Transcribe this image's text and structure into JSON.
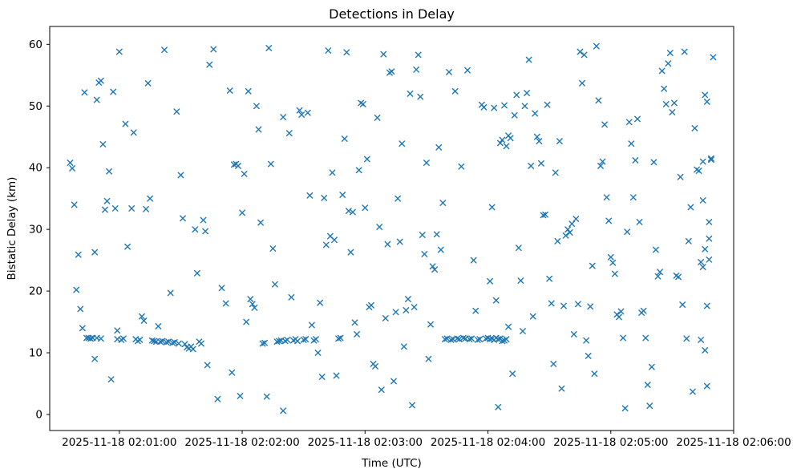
{
  "chart_data": {
    "type": "scatter",
    "title": "Detections in Delay",
    "xlabel": "Time (UTC)",
    "ylabel": "Bistatic Delay (km)",
    "marker": "x",
    "marker_color": "#1f77b4",
    "x_unit": "seconds after 2025-11-18 02:00:00 UTC",
    "xlim_seconds": [
      26,
      360
    ],
    "ylim": [
      -2.6,
      62.9
    ],
    "x_tick_seconds": [
      60,
      120,
      180,
      240,
      300,
      360
    ],
    "x_tick_labels": [
      "2025-11-18 02:01:00",
      "2025-11-18 02:02:00",
      "2025-11-18 02:03:00",
      "2025-11-18 02:04:00",
      "2025-11-18 02:05:00",
      "2025-11-18 02:06:00"
    ],
    "y_ticks": [
      0,
      10,
      20,
      30,
      40,
      50,
      60
    ],
    "grid": false,
    "legend": "none",
    "points": [
      [
        36,
        40.8
      ],
      [
        37,
        39.9
      ],
      [
        38,
        34
      ],
      [
        39,
        20.2
      ],
      [
        40,
        25.9
      ],
      [
        41,
        17.1
      ],
      [
        42,
        14
      ],
      [
        43,
        52.2
      ],
      [
        44,
        12.4
      ],
      [
        45,
        12.4
      ],
      [
        46,
        12.3
      ],
      [
        47,
        12.4
      ],
      [
        48,
        9
      ],
      [
        48,
        26.3
      ],
      [
        49,
        12.4
      ],
      [
        49,
        51
      ],
      [
        50,
        53.8
      ],
      [
        51,
        54.1
      ],
      [
        51,
        12.3
      ],
      [
        52,
        43.8
      ],
      [
        53,
        33.2
      ],
      [
        54,
        34.6
      ],
      [
        55,
        39.4
      ],
      [
        56,
        5.7
      ],
      [
        57,
        52.3
      ],
      [
        58,
        33.4
      ],
      [
        59,
        12.2
      ],
      [
        59,
        13.6
      ],
      [
        60,
        58.8
      ],
      [
        61,
        12.1
      ],
      [
        62,
        12.3
      ],
      [
        63,
        47.1
      ],
      [
        64,
        27.2
      ],
      [
        66,
        33.4
      ],
      [
        67,
        45.7
      ],
      [
        68,
        12.2
      ],
      [
        69,
        11.9
      ],
      [
        70,
        12.1
      ],
      [
        71,
        15.9
      ],
      [
        72,
        15.2
      ],
      [
        73,
        33.3
      ],
      [
        74,
        53.7
      ],
      [
        75,
        35
      ],
      [
        76,
        12
      ],
      [
        77,
        11.9
      ],
      [
        78,
        11.8
      ],
      [
        79,
        14.3
      ],
      [
        80,
        11.8
      ],
      [
        81,
        11.9
      ],
      [
        82,
        59.1
      ],
      [
        83,
        11.7
      ],
      [
        84,
        11.8
      ],
      [
        85,
        19.7
      ],
      [
        86,
        11.6
      ],
      [
        87,
        11.7
      ],
      [
        88,
        49.1
      ],
      [
        89,
        11.5
      ],
      [
        90,
        38.8
      ],
      [
        91,
        31.8
      ],
      [
        92,
        11.4
      ],
      [
        93,
        10.9
      ],
      [
        94,
        10.7
      ],
      [
        95,
        11
      ],
      [
        96,
        10.6
      ],
      [
        97,
        30
      ],
      [
        98,
        22.9
      ],
      [
        99,
        11.8
      ],
      [
        100,
        11.5
      ],
      [
        101,
        31.5
      ],
      [
        102,
        29.7
      ],
      [
        103,
        8
      ],
      [
        104,
        56.7
      ],
      [
        106,
        59.2
      ],
      [
        108,
        2.5
      ],
      [
        110,
        20.5
      ],
      [
        112,
        18
      ],
      [
        114,
        52.5
      ],
      [
        115,
        6.8
      ],
      [
        116,
        40.5
      ],
      [
        117,
        40.6
      ],
      [
        118,
        40.3
      ],
      [
        119,
        3
      ],
      [
        120,
        32.7
      ],
      [
        121,
        39
      ],
      [
        122,
        15
      ],
      [
        123,
        52.4
      ],
      [
        124,
        18.7
      ],
      [
        125,
        17.9
      ],
      [
        126,
        17.3
      ],
      [
        127,
        50
      ],
      [
        128,
        46.2
      ],
      [
        129,
        31.1
      ],
      [
        130,
        11.5
      ],
      [
        131,
        11.6
      ],
      [
        132,
        2.9
      ],
      [
        133,
        59.4
      ],
      [
        134,
        40.6
      ],
      [
        135,
        26.9
      ],
      [
        136,
        21.1
      ],
      [
        137,
        11.8
      ],
      [
        138,
        11.9
      ],
      [
        139,
        12
      ],
      [
        140,
        0.6
      ],
      [
        140,
        48.2
      ],
      [
        141,
        11.9
      ],
      [
        142,
        12.1
      ],
      [
        143,
        45.6
      ],
      [
        144,
        19
      ],
      [
        145,
        12
      ],
      [
        146,
        12.2
      ],
      [
        147,
        11.9
      ],
      [
        148,
        49.3
      ],
      [
        149,
        48.6
      ],
      [
        150,
        12.1
      ],
      [
        151,
        12.2
      ],
      [
        152,
        48.9
      ],
      [
        153,
        35.5
      ],
      [
        154,
        14.5
      ],
      [
        155,
        12
      ],
      [
        156,
        12.2
      ],
      [
        157,
        10
      ],
      [
        158,
        18.1
      ],
      [
        159,
        6.1
      ],
      [
        160,
        35.1
      ],
      [
        161,
        27.5
      ],
      [
        162,
        59
      ],
      [
        163,
        28.9
      ],
      [
        164,
        39.2
      ],
      [
        165,
        28.3
      ],
      [
        166,
        6.3
      ],
      [
        167,
        12.3
      ],
      [
        168,
        12.4
      ],
      [
        169,
        35.6
      ],
      [
        170,
        44.7
      ],
      [
        171,
        58.7
      ],
      [
        172,
        33
      ],
      [
        173,
        26.3
      ],
      [
        174,
        32.8
      ],
      [
        175,
        14.9
      ],
      [
        176,
        13
      ],
      [
        177,
        39.6
      ],
      [
        178,
        50.5
      ],
      [
        179,
        50.3
      ],
      [
        180,
        33.5
      ],
      [
        181,
        41.4
      ],
      [
        182,
        17.4
      ],
      [
        183,
        17.7
      ],
      [
        184,
        8.2
      ],
      [
        185,
        7.8
      ],
      [
        186,
        48.1
      ],
      [
        187,
        30.4
      ],
      [
        188,
        4
      ],
      [
        189,
        58.4
      ],
      [
        190,
        15.6
      ],
      [
        191,
        27.6
      ],
      [
        192,
        55.4
      ],
      [
        193,
        55.6
      ],
      [
        194,
        5.4
      ],
      [
        195,
        16.6
      ],
      [
        196,
        35
      ],
      [
        197,
        28
      ],
      [
        198,
        43.9
      ],
      [
        199,
        11
      ],
      [
        200,
        16.9
      ],
      [
        201,
        18.7
      ],
      [
        202,
        52
      ],
      [
        203,
        1.5
      ],
      [
        204,
        17.4
      ],
      [
        205,
        55.9
      ],
      [
        206,
        58.3
      ],
      [
        207,
        51.5
      ],
      [
        208,
        29.1
      ],
      [
        209,
        26
      ],
      [
        210,
        40.8
      ],
      [
        211,
        9
      ],
      [
        212,
        14.6
      ],
      [
        213,
        24
      ],
      [
        214,
        23.5
      ],
      [
        215,
        29.2
      ],
      [
        216,
        43.3
      ],
      [
        217,
        26.7
      ],
      [
        218,
        34.3
      ],
      [
        219,
        12.2
      ],
      [
        220,
        12.3
      ],
      [
        221,
        55.5
      ],
      [
        222,
        12.1
      ],
      [
        223,
        12.2
      ],
      [
        224,
        52.4
      ],
      [
        225,
        12.3
      ],
      [
        226,
        12.2
      ],
      [
        227,
        40.2
      ],
      [
        228,
        12.4
      ],
      [
        229,
        12.3
      ],
      [
        230,
        55.8
      ],
      [
        231,
        12.2
      ],
      [
        232,
        12.3
      ],
      [
        233,
        25
      ],
      [
        234,
        16.8
      ],
      [
        235,
        12.1
      ],
      [
        236,
        12.2
      ],
      [
        237,
        50.2
      ],
      [
        238,
        49.8
      ],
      [
        239,
        12.3
      ],
      [
        240,
        12.4
      ],
      [
        241,
        12.2
      ],
      [
        242,
        12.3
      ],
      [
        243,
        12.1
      ],
      [
        244,
        12.4
      ],
      [
        245,
        12.2
      ],
      [
        246,
        12.3
      ],
      [
        247,
        11.9
      ],
      [
        248,
        12
      ],
      [
        249,
        12.2
      ],
      [
        241,
        21.6
      ],
      [
        242,
        33.6
      ],
      [
        243,
        49.7
      ],
      [
        244,
        18.5
      ],
      [
        245,
        1.2
      ],
      [
        246,
        44
      ],
      [
        247,
        44.5
      ],
      [
        248,
        50.1
      ],
      [
        249,
        43.5
      ],
      [
        250,
        14.2
      ],
      [
        250,
        45.2
      ],
      [
        251,
        44.8
      ],
      [
        252,
        6.6
      ],
      [
        253,
        48.5
      ],
      [
        254,
        51.8
      ],
      [
        255,
        27
      ],
      [
        256,
        21.7
      ],
      [
        257,
        13.5
      ],
      [
        258,
        50
      ],
      [
        259,
        52.1
      ],
      [
        260,
        57.5
      ],
      [
        261,
        40.3
      ],
      [
        262,
        15.9
      ],
      [
        263,
        48.8
      ],
      [
        264,
        45
      ],
      [
        265,
        44.3
      ],
      [
        266,
        40.7
      ],
      [
        267,
        32.3
      ],
      [
        268,
        32.4
      ],
      [
        269,
        50.2
      ],
      [
        270,
        22
      ],
      [
        271,
        18
      ],
      [
        272,
        8.2
      ],
      [
        273,
        39.2
      ],
      [
        274,
        28.1
      ],
      [
        275,
        44.3
      ],
      [
        276,
        4.2
      ],
      [
        277,
        17.6
      ],
      [
        278,
        29
      ],
      [
        279,
        30
      ],
      [
        280,
        29.5
      ],
      [
        281,
        30.9
      ],
      [
        282,
        13
      ],
      [
        283,
        31.7
      ],
      [
        284,
        17.9
      ],
      [
        285,
        58.8
      ],
      [
        286,
        53.7
      ],
      [
        287,
        58.3
      ],
      [
        288,
        12
      ],
      [
        289,
        9.5
      ],
      [
        290,
        17.5
      ],
      [
        291,
        24.1
      ],
      [
        292,
        6.6
      ],
      [
        293,
        59.7
      ],
      [
        294,
        50.9
      ],
      [
        295,
        40.3
      ],
      [
        296,
        41
      ],
      [
        297,
        47
      ],
      [
        298,
        35.2
      ],
      [
        299,
        31.4
      ],
      [
        300,
        25.5
      ],
      [
        301,
        24.6
      ],
      [
        302,
        22.8
      ],
      [
        303,
        16.2
      ],
      [
        304,
        15.8
      ],
      [
        305,
        16.7
      ],
      [
        306,
        12.4
      ],
      [
        307,
        1
      ],
      [
        308,
        29.6
      ],
      [
        309,
        47.4
      ],
      [
        310,
        43.9
      ],
      [
        311,
        35.2
      ],
      [
        312,
        41.2
      ],
      [
        313,
        47.9
      ],
      [
        314,
        31.2
      ],
      [
        315,
        16.5
      ],
      [
        316,
        16.8
      ],
      [
        317,
        12.4
      ],
      [
        318,
        4.8
      ],
      [
        319,
        1.4
      ],
      [
        320,
        7.7
      ],
      [
        321,
        40.9
      ],
      [
        322,
        26.7
      ],
      [
        323,
        22.4
      ],
      [
        324,
        23.1
      ],
      [
        325,
        55.7
      ],
      [
        326,
        52.8
      ],
      [
        327,
        50.3
      ],
      [
        328,
        56.9
      ],
      [
        329,
        58.6
      ],
      [
        330,
        49
      ],
      [
        331,
        50.5
      ],
      [
        332,
        22.5
      ],
      [
        333,
        22.3
      ],
      [
        334,
        38.5
      ],
      [
        335,
        17.8
      ],
      [
        336,
        58.8
      ],
      [
        337,
        12.3
      ],
      [
        338,
        28.1
      ],
      [
        339,
        33.6
      ],
      [
        340,
        3.7
      ],
      [
        341,
        46.4
      ],
      [
        342,
        39.7
      ],
      [
        343,
        39.5
      ],
      [
        344,
        24.7
      ],
      [
        344,
        12.1
      ],
      [
        345,
        34.7
      ],
      [
        345,
        23.9
      ],
      [
        345,
        41
      ],
      [
        346,
        51.8
      ],
      [
        346,
        10.4
      ],
      [
        346,
        26.8
      ],
      [
        347,
        50.7
      ],
      [
        347,
        4.6
      ],
      [
        347,
        17.6
      ],
      [
        348,
        25.1
      ],
      [
        348,
        28.5
      ],
      [
        348,
        31.2
      ],
      [
        349,
        41.5
      ],
      [
        349,
        41.3
      ],
      [
        350,
        57.9
      ]
    ]
  }
}
